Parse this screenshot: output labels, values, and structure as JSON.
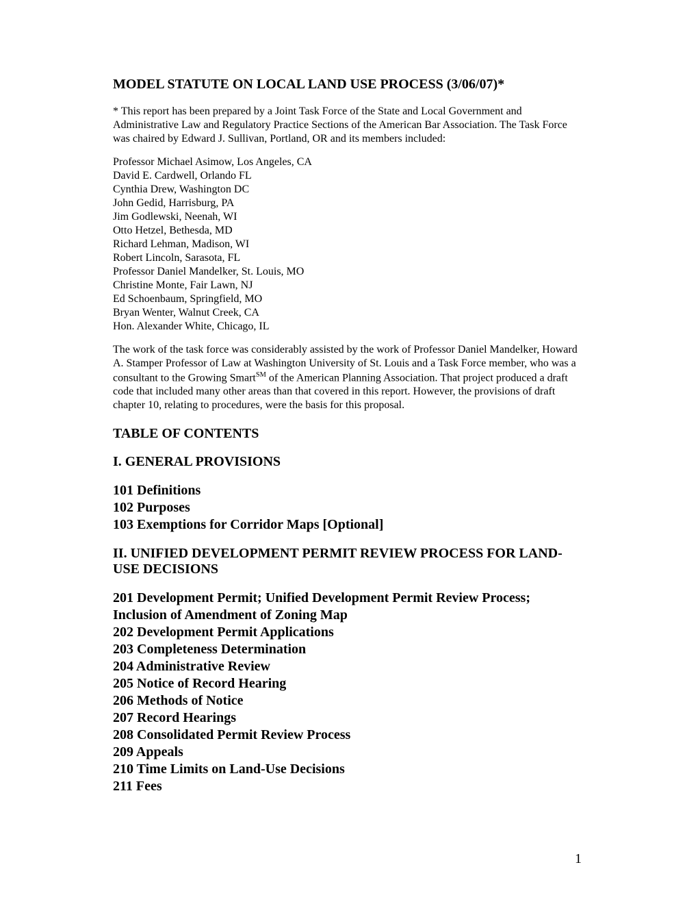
{
  "title": "MODEL STATUTE ON LOCAL LAND USE PROCESS (3/06/07)*",
  "footnote_prefix": "*    This report has been prepared by a Joint Task Force of the State and Local Government and Administrative Law and Regulatory Practice Sections of the American Bar Association.  The Task Force was chaired by Edward J. Sullivan, Portland, OR and its members included:",
  "members": [
    "Professor Michael Asimow, Los Angeles, CA",
    "David E. Cardwell, Orlando FL",
    "Cynthia Drew, Washington DC",
    "John Gedid, Harrisburg, PA",
    "Jim Godlewski, Neenah, WI",
    "Otto Hetzel, Bethesda, MD",
    "Richard Lehman, Madison, WI",
    "Robert Lincoln, Sarasota, FL",
    "Professor Daniel Mandelker, St. Louis, MO",
    "Christine Monte, Fair Lawn, NJ",
    "Ed Schoenbaum, Springfield, MO",
    "Bryan Wenter, Walnut Creek, CA",
    "Hon. Alexander White, Chicago, IL"
  ],
  "assist_para_pre": "The work of the task force was considerably assisted by the work of Professor Daniel Mandelker, Howard A. Stamper Professor of Law at Washington University of St. Louis and a Task Force member, who was a consultant to the Growing Smart",
  "assist_para_sup": "SM",
  "assist_para_post": " of the American Planning Association.  That project produced a draft code that included many other areas than that covered in this report.  However, the provisions of draft chapter 10, relating to procedures, were the basis for this proposal.",
  "toc_heading": "TABLE OF CONTENTS",
  "section1": {
    "heading": "I. GENERAL PROVISIONS",
    "items": [
      "101 Definitions",
      "102 Purposes",
      "103 Exemptions for Corridor Maps [Optional]"
    ]
  },
  "section2": {
    "heading": "II. UNIFIED DEVELOPMENT PERMIT REVIEW PROCESS FOR LAND-USE DECISIONS",
    "items": [
      "201 Development Permit; Unified Development Permit Review Process; Inclusion of Amendment of Zoning Map",
      "202 Development Permit Applications",
      "203 Completeness Determination",
      "204 Administrative Review",
      "205 Notice of Record Hearing",
      "206 Methods of Notice",
      "207 Record Hearings",
      "208 Consolidated Permit Review Process",
      "209 Appeals",
      "210 Time Limits on Land-Use Decisions",
      "211 Fees"
    ]
  },
  "page_number": "1"
}
